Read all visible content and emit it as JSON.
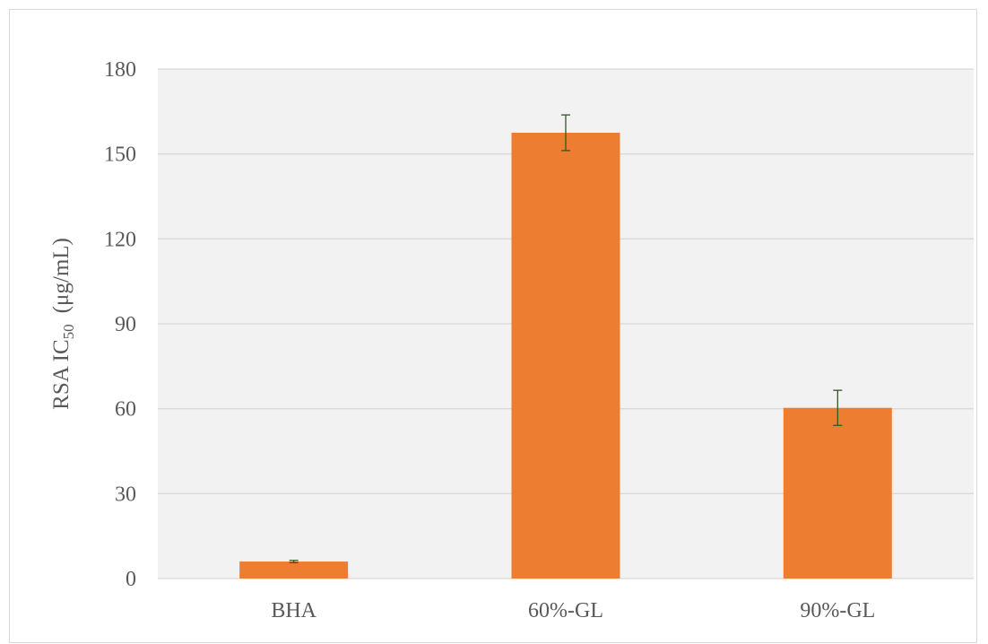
{
  "chart_data": {
    "type": "bar",
    "title": "",
    "xlabel": "",
    "ylabel": {
      "main": "RSA IC",
      "subscript": "50",
      "unit": "(μg/mL)"
    },
    "categories": [
      "BHA",
      "60%-GL",
      "90%-GL"
    ],
    "series": [
      {
        "values": [
          6,
          157.5,
          60.3
        ],
        "error": [
          0.4,
          6.3,
          6.2
        ]
      }
    ],
    "ylim": [
      0,
      180
    ],
    "yticks": [
      0,
      30,
      60,
      90,
      120,
      150,
      180
    ],
    "grid": true,
    "legend": "none",
    "colors": {
      "bar": "#ED7D31",
      "error_bar": "#375623",
      "grid": "#d9d9d9",
      "plot_background": "#f2f2f2",
      "text": "#595959"
    }
  }
}
